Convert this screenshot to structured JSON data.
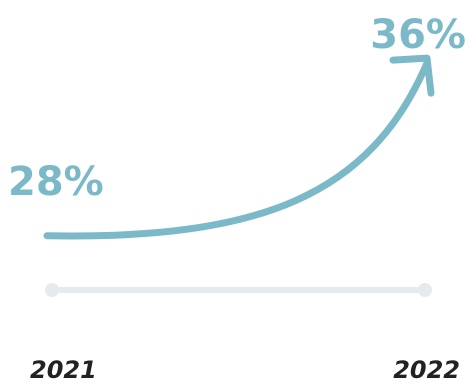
{
  "chart_data": {
    "type": "line",
    "categories": [
      "2021",
      "2022"
    ],
    "values": [
      28,
      36
    ],
    "value_labels": [
      "28%",
      "36%"
    ],
    "title": "",
    "xlabel": "",
    "ylabel": "",
    "ylim": [
      24,
      38
    ],
    "grid": false,
    "colors": {
      "accent": "#7bb9c9",
      "baseline": "#e6eaef",
      "year_text": "#222222"
    }
  }
}
